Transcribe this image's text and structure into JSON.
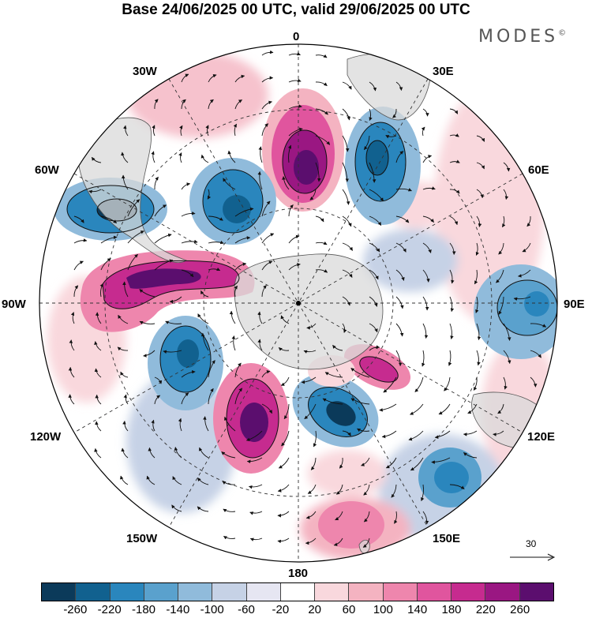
{
  "title": "Base 24/06/2025 00 UTC, valid 29/06/2025 00 UTC",
  "brand": "MODES",
  "brand_mark": "©",
  "map": {
    "projection": "polar-stereographic-south",
    "longitude_labels": [
      {
        "text": "0",
        "lon": 0
      },
      {
        "text": "30E",
        "lon": 30
      },
      {
        "text": "60E",
        "lon": 60
      },
      {
        "text": "90E",
        "lon": 90
      },
      {
        "text": "120E",
        "lon": 120
      },
      {
        "text": "150E",
        "lon": 150
      },
      {
        "text": "180",
        "lon": 180
      },
      {
        "text": "150W",
        "lon": -150
      },
      {
        "text": "120W",
        "lon": -120
      },
      {
        "text": "90W",
        "lon": -90
      },
      {
        "text": "60W",
        "lon": -60
      },
      {
        "text": "30W",
        "lon": -30
      }
    ],
    "colors": {
      "land": "#d9d9d9",
      "graticule": "#333333",
      "contour": "#111111",
      "wind_vectors": "#111111"
    },
    "reference_vector": "30"
  },
  "colorbar": {
    "tick_labels": [
      "-260",
      "-220",
      "-180",
      "-140",
      "-100",
      "-60",
      "-20",
      "20",
      "60",
      "100",
      "140",
      "180",
      "220",
      "260"
    ],
    "colors": [
      "#0b3a5a",
      "#11618f",
      "#2a86bd",
      "#5aa1cd",
      "#90bbdb",
      "#c6d2e6",
      "#e6e6f2",
      "#ffffff",
      "#f9d8dd",
      "#f4b3c1",
      "#ee86ad",
      "#e0559e",
      "#c62b8f",
      "#9a1782",
      "#5b0e6e"
    ]
  }
}
